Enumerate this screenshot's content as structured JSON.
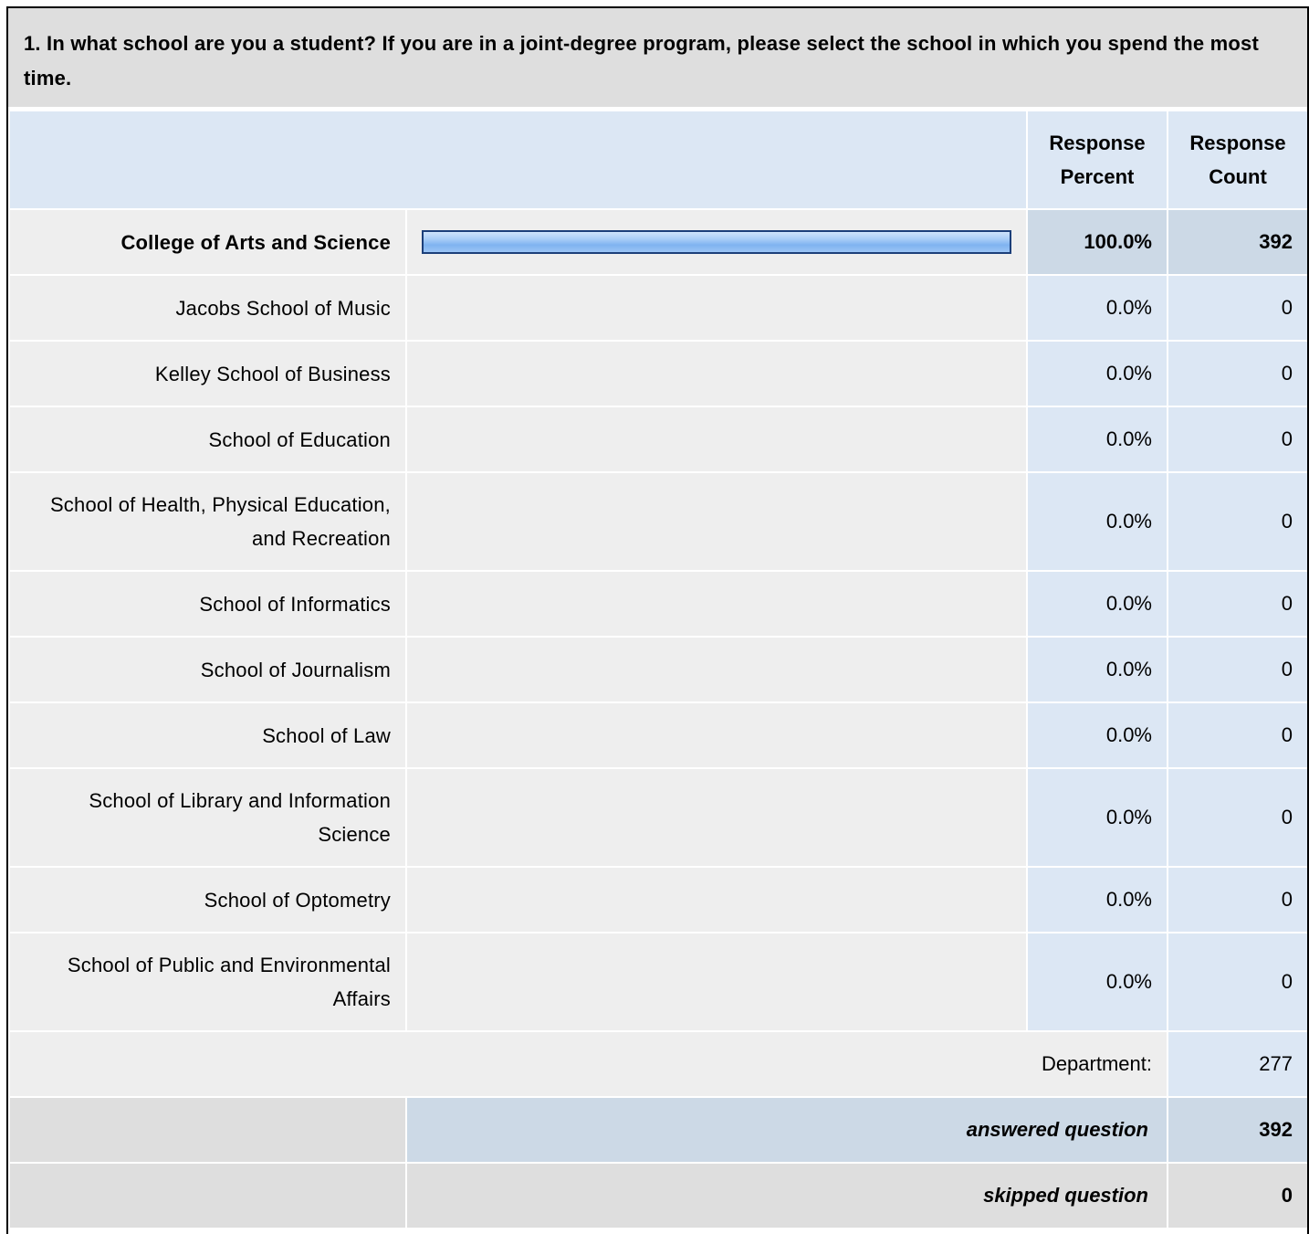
{
  "question": "1. In what school are you a student? If you are in a joint-degree program, please select the school in which you spend the most time.",
  "headers": {
    "percent": "Response Percent",
    "count": "Response Count"
  },
  "rows": [
    {
      "label": "College of Arts and Science",
      "percent": "100.0%",
      "count": "392",
      "fraction": 1.0
    },
    {
      "label": "Jacobs School of Music",
      "percent": "0.0%",
      "count": "0",
      "fraction": 0
    },
    {
      "label": "Kelley School of Business",
      "percent": "0.0%",
      "count": "0",
      "fraction": 0
    },
    {
      "label": "School of Education",
      "percent": "0.0%",
      "count": "0",
      "fraction": 0
    },
    {
      "label": "School of Health, Physical Education, and Recreation",
      "percent": "0.0%",
      "count": "0",
      "fraction": 0
    },
    {
      "label": "School of Informatics",
      "percent": "0.0%",
      "count": "0",
      "fraction": 0
    },
    {
      "label": "School of Journalism",
      "percent": "0.0%",
      "count": "0",
      "fraction": 0
    },
    {
      "label": "School of Law",
      "percent": "0.0%",
      "count": "0",
      "fraction": 0
    },
    {
      "label": "School of Library and Information Science",
      "percent": "0.0%",
      "count": "0",
      "fraction": 0
    },
    {
      "label": "School of Optometry",
      "percent": "0.0%",
      "count": "0",
      "fraction": 0
    },
    {
      "label": "School of Public and Environmental Affairs",
      "percent": "0.0%",
      "count": "0",
      "fraction": 0
    }
  ],
  "department": {
    "label": "Department:",
    "count": "277"
  },
  "answered": {
    "label": "answered question",
    "count": "392"
  },
  "skipped": {
    "label": "skipped question",
    "count": "0"
  },
  "colors": {
    "bar_border": "#1c3f7a",
    "bar_fill": "#7fb3f0",
    "header_bg": "#dce7f4",
    "row_bg": "#eeeeee"
  }
}
